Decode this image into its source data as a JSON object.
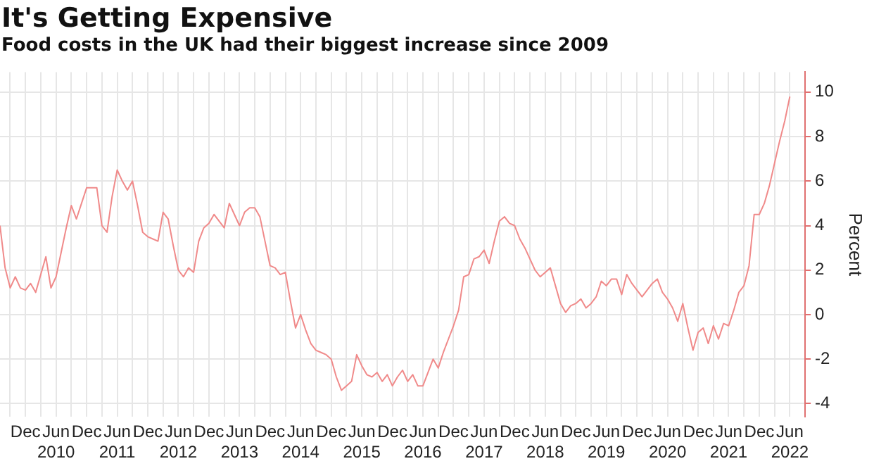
{
  "chart_data": {
    "type": "line",
    "title": "It's Getting Expensive",
    "subtitle": "Food costs in the UK had their biggest increase since 2009",
    "ylabel": "Percent",
    "x": [
      "2009-07",
      "2009-08",
      "2009-09",
      "2009-10",
      "2009-11",
      "2009-12",
      "2010-01",
      "2010-02",
      "2010-03",
      "2010-04",
      "2010-05",
      "2010-06",
      "2010-07",
      "2010-08",
      "2010-09",
      "2010-10",
      "2010-11",
      "2010-12",
      "2011-01",
      "2011-02",
      "2011-03",
      "2011-04",
      "2011-05",
      "2011-06",
      "2011-07",
      "2011-08",
      "2011-09",
      "2011-10",
      "2011-11",
      "2011-12",
      "2012-01",
      "2012-02",
      "2012-03",
      "2012-04",
      "2012-05",
      "2012-06",
      "2012-07",
      "2012-08",
      "2012-09",
      "2012-10",
      "2012-11",
      "2012-12",
      "2013-01",
      "2013-02",
      "2013-03",
      "2013-04",
      "2013-05",
      "2013-06",
      "2013-07",
      "2013-08",
      "2013-09",
      "2013-10",
      "2013-11",
      "2013-12",
      "2014-01",
      "2014-02",
      "2014-03",
      "2014-04",
      "2014-05",
      "2014-06",
      "2014-07",
      "2014-08",
      "2014-09",
      "2014-10",
      "2014-11",
      "2014-12",
      "2015-01",
      "2015-02",
      "2015-03",
      "2015-04",
      "2015-05",
      "2015-06",
      "2015-07",
      "2015-08",
      "2015-09",
      "2015-10",
      "2015-11",
      "2015-12",
      "2016-01",
      "2016-02",
      "2016-03",
      "2016-04",
      "2016-05",
      "2016-06",
      "2016-07",
      "2016-08",
      "2016-09",
      "2016-10",
      "2016-11",
      "2016-12",
      "2017-01",
      "2017-02",
      "2017-03",
      "2017-04",
      "2017-05",
      "2017-06",
      "2017-07",
      "2017-08",
      "2017-09",
      "2017-10",
      "2017-11",
      "2017-12",
      "2018-01",
      "2018-02",
      "2018-03",
      "2018-04",
      "2018-05",
      "2018-06",
      "2018-07",
      "2018-08",
      "2018-09",
      "2018-10",
      "2018-11",
      "2018-12",
      "2019-01",
      "2019-02",
      "2019-03",
      "2019-04",
      "2019-05",
      "2019-06",
      "2019-07",
      "2019-08",
      "2019-09",
      "2019-10",
      "2019-11",
      "2019-12",
      "2020-01",
      "2020-02",
      "2020-03",
      "2020-04",
      "2020-05",
      "2020-06",
      "2020-07",
      "2020-08",
      "2020-09",
      "2020-10",
      "2020-11",
      "2020-12",
      "2021-01",
      "2021-02",
      "2021-03",
      "2021-04",
      "2021-05",
      "2021-06",
      "2021-07",
      "2021-08",
      "2021-09",
      "2021-10",
      "2021-11",
      "2021-12",
      "2022-01",
      "2022-02",
      "2022-03",
      "2022-04",
      "2022-05",
      "2022-06"
    ],
    "series": [
      {
        "color": "#f08a8a",
        "values": [
          4.0,
          2.1,
          1.2,
          1.7,
          1.2,
          1.1,
          1.4,
          1.0,
          1.8,
          2.6,
          1.2,
          1.7,
          2.8,
          3.9,
          4.9,
          4.3,
          5.0,
          5.7,
          5.7,
          5.7,
          4.0,
          3.7,
          5.3,
          6.5,
          6.0,
          5.6,
          6.0,
          4.9,
          3.7,
          3.5,
          3.4,
          3.3,
          4.6,
          4.3,
          3.1,
          2.0,
          1.7,
          2.1,
          1.9,
          3.3,
          3.9,
          4.1,
          4.5,
          4.2,
          3.9,
          5.0,
          4.5,
          4.0,
          4.6,
          4.8,
          4.8,
          4.4,
          3.3,
          2.2,
          2.1,
          1.8,
          1.9,
          0.6,
          -0.6,
          0.0,
          -0.7,
          -1.3,
          -1.6,
          -1.7,
          -1.8,
          -2.0,
          -2.8,
          -3.4,
          -3.2,
          -3.0,
          -1.8,
          -2.3,
          -2.7,
          -2.8,
          -2.6,
          -3.0,
          -2.7,
          -3.2,
          -2.8,
          -2.5,
          -3.0,
          -2.7,
          -3.2,
          -3.2,
          -2.6,
          -2.0,
          -2.4,
          -1.7,
          -1.1,
          -0.5,
          0.2,
          1.7,
          1.8,
          2.5,
          2.6,
          2.9,
          2.3,
          3.3,
          4.2,
          4.4,
          4.1,
          4.0,
          3.4,
          3.0,
          2.5,
          2.0,
          1.7,
          1.9,
          2.1,
          1.3,
          0.5,
          0.1,
          0.4,
          0.5,
          0.7,
          0.3,
          0.5,
          0.8,
          1.5,
          1.3,
          1.6,
          1.6,
          0.9,
          1.8,
          1.4,
          1.1,
          0.8,
          1.1,
          1.4,
          1.6,
          1.0,
          0.7,
          0.3,
          -0.3,
          0.5,
          -0.6,
          -1.6,
          -0.8,
          -0.6,
          -1.3,
          -0.5,
          -1.1,
          -0.4,
          -0.5,
          0.2,
          1.0,
          1.3,
          2.2,
          4.5,
          4.5,
          5.0,
          5.8,
          6.8,
          7.8,
          8.7,
          9.8
        ]
      }
    ],
    "xlim": [
      "2009-07",
      "2022-09"
    ],
    "xticks": [
      {
        "value": "2009-09",
        "label": null
      },
      {
        "value": "2009-12",
        "label": "Dec"
      },
      {
        "value": "2010-03",
        "label": null
      },
      {
        "value": "2010-06",
        "label": "Jun\n2010"
      },
      {
        "value": "2010-09",
        "label": null
      },
      {
        "value": "2010-12",
        "label": "Dec"
      },
      {
        "value": "2011-03",
        "label": null
      },
      {
        "value": "2011-06",
        "label": "Jun\n2011"
      },
      {
        "value": "2011-09",
        "label": null
      },
      {
        "value": "2011-12",
        "label": "Dec"
      },
      {
        "value": "2012-03",
        "label": null
      },
      {
        "value": "2012-06",
        "label": "Jun\n2012"
      },
      {
        "value": "2012-09",
        "label": null
      },
      {
        "value": "2012-12",
        "label": "Dec"
      },
      {
        "value": "2013-03",
        "label": null
      },
      {
        "value": "2013-06",
        "label": "Jun\n2013"
      },
      {
        "value": "2013-09",
        "label": null
      },
      {
        "value": "2013-12",
        "label": "Dec"
      },
      {
        "value": "2014-03",
        "label": null
      },
      {
        "value": "2014-06",
        "label": "Jun\n2014"
      },
      {
        "value": "2014-09",
        "label": null
      },
      {
        "value": "2014-12",
        "label": "Dec"
      },
      {
        "value": "2015-03",
        "label": null
      },
      {
        "value": "2015-06",
        "label": "Jun\n2015"
      },
      {
        "value": "2015-09",
        "label": null
      },
      {
        "value": "2015-12",
        "label": "Dec"
      },
      {
        "value": "2016-03",
        "label": null
      },
      {
        "value": "2016-06",
        "label": "Jun\n2016"
      },
      {
        "value": "2016-09",
        "label": null
      },
      {
        "value": "2016-12",
        "label": "Dec"
      },
      {
        "value": "2017-03",
        "label": null
      },
      {
        "value": "2017-06",
        "label": "Jun\n2017"
      },
      {
        "value": "2017-09",
        "label": null
      },
      {
        "value": "2017-12",
        "label": "Dec"
      },
      {
        "value": "2018-03",
        "label": null
      },
      {
        "value": "2018-06",
        "label": "Jun\n2018"
      },
      {
        "value": "2018-09",
        "label": null
      },
      {
        "value": "2018-12",
        "label": "Dec"
      },
      {
        "value": "2019-03",
        "label": null
      },
      {
        "value": "2019-06",
        "label": "Jun\n2019"
      },
      {
        "value": "2019-09",
        "label": null
      },
      {
        "value": "2019-12",
        "label": "Dec"
      },
      {
        "value": "2020-03",
        "label": null
      },
      {
        "value": "2020-06",
        "label": "Jun\n2020"
      },
      {
        "value": "2020-09",
        "label": null
      },
      {
        "value": "2020-12",
        "label": "Dec"
      },
      {
        "value": "2021-03",
        "label": null
      },
      {
        "value": "2021-06",
        "label": "Jun\n2021"
      },
      {
        "value": "2021-09",
        "label": null
      },
      {
        "value": "2021-12",
        "label": "Dec"
      },
      {
        "value": "2022-03",
        "label": null
      },
      {
        "value": "2022-06",
        "label": "Jun\n2022"
      }
    ],
    "ylim": [
      -4.6,
      10.9
    ],
    "yticks": [
      -4,
      -2,
      0,
      2,
      4,
      6,
      8,
      10
    ],
    "grid": true,
    "legend": false,
    "marker": "none",
    "line_style": "solid"
  }
}
